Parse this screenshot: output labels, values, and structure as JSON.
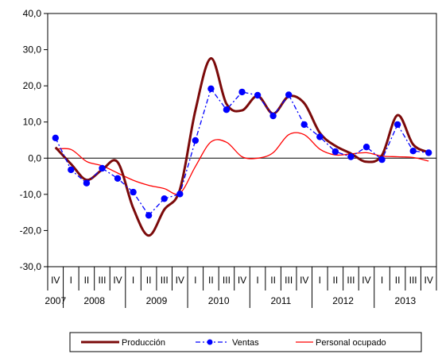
{
  "chart_data": {
    "type": "line",
    "title": "",
    "xlabel": "",
    "ylabel": "",
    "ylim": [
      -30,
      40
    ],
    "yticks": [
      -30,
      -20,
      -10,
      0,
      10,
      20,
      30,
      40
    ],
    "ytick_labels": [
      "-30,0",
      "-20,0",
      "-10,0",
      "0,0",
      "10,0",
      "20,0",
      "30,0",
      "40,0"
    ],
    "grid": false,
    "legend_position": "bottom",
    "quarters": [
      "IV",
      "I",
      "II",
      "III",
      "IV",
      "I",
      "II",
      "III",
      "IV",
      "I",
      "II",
      "III",
      "IV",
      "I",
      "II",
      "III",
      "IV",
      "I",
      "II",
      "III",
      "IV",
      "I",
      "II",
      "III",
      "IV"
    ],
    "years": [
      {
        "label": "2007",
        "quarters": 1
      },
      {
        "label": "2008",
        "quarters": 4
      },
      {
        "label": "2009",
        "quarters": 4
      },
      {
        "label": "2010",
        "quarters": 4
      },
      {
        "label": "2011",
        "quarters": 4
      },
      {
        "label": "2012",
        "quarters": 4
      },
      {
        "label": "2013",
        "quarters": 4
      }
    ],
    "series": [
      {
        "name": "Producción",
        "color": "#7b0a0a",
        "style": "solid-thick",
        "values": [
          3.0,
          -1.6,
          -6.0,
          -3.2,
          -1.1,
          -13.8,
          -21.4,
          -14.2,
          -8.7,
          13.2,
          27.6,
          15.0,
          13.2,
          17.2,
          12.3,
          17.1,
          15.2,
          7.0,
          3.4,
          1.3,
          -1.0,
          0.8,
          11.9,
          3.8,
          1.6
        ]
      },
      {
        "name": "Ventas",
        "color": "#0000ff",
        "style": "dashdot-markers",
        "values": [
          5.6,
          -3.2,
          -6.9,
          -2.8,
          -5.6,
          -9.4,
          -15.8,
          -11.2,
          -9.9,
          4.9,
          19.2,
          13.4,
          18.3,
          17.4,
          11.7,
          17.5,
          9.3,
          5.9,
          1.8,
          0.4,
          3.1,
          -0.4,
          9.3,
          2.0,
          1.5
        ]
      },
      {
        "name": "Personal ocupado",
        "color": "#ff0000",
        "style": "solid-thin",
        "values": [
          2.5,
          2.4,
          -0.9,
          -2.1,
          -4.1,
          -6.1,
          -7.5,
          -8.4,
          -9.7,
          -2.3,
          4.5,
          4.4,
          0.4,
          0.0,
          1.5,
          6.5,
          6.5,
          2.5,
          0.9,
          1.2,
          1.5,
          0.6,
          0.4,
          0.2,
          -0.8
        ]
      }
    ]
  }
}
